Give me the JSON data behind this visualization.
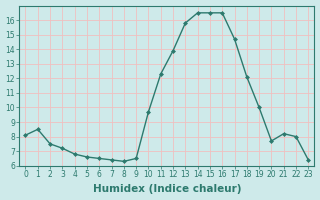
{
  "xlabel": "Humidex (Indice chaleur)",
  "ylabel": "",
  "x": [
    0,
    1,
    2,
    3,
    4,
    5,
    6,
    7,
    8,
    9,
    10,
    11,
    12,
    13,
    14,
    15,
    16,
    17,
    18,
    19,
    20,
    21,
    22,
    23
  ],
  "y": [
    8.1,
    8.5,
    7.5,
    7.2,
    6.8,
    6.6,
    6.5,
    6.4,
    6.3,
    6.5,
    9.7,
    12.3,
    13.9,
    15.8,
    16.5,
    16.5,
    16.5,
    14.7,
    12.1,
    10.0,
    7.7,
    8.2,
    8.0,
    6.4
  ],
  "line_color": "#2d7a6e",
  "marker": "D",
  "marker_size": 2.0,
  "line_width": 1.0,
  "ylim": [
    6,
    17
  ],
  "xlim": [
    -0.5,
    23.5
  ],
  "yticks": [
    6,
    7,
    8,
    9,
    10,
    11,
    12,
    13,
    14,
    15,
    16
  ],
  "xticks": [
    0,
    1,
    2,
    3,
    4,
    5,
    6,
    7,
    8,
    9,
    10,
    11,
    12,
    13,
    14,
    15,
    16,
    17,
    18,
    19,
    20,
    21,
    22,
    23
  ],
  "bg_color": "#ceeaea",
  "grid_color": "#f0c0c0",
  "spine_color": "#2d7a6e",
  "tick_label_fontsize": 5.5,
  "xlabel_fontsize": 7.5,
  "xlabel_bold": true
}
